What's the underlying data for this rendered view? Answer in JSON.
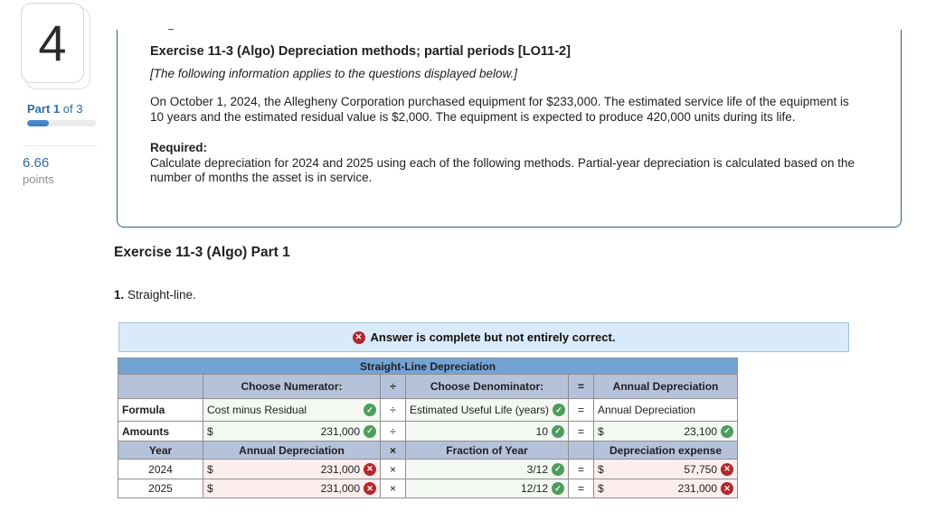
{
  "sidebar": {
    "question_number": "4",
    "part_bold": "Part 1",
    "part_rest": " of 3",
    "progress_percent": 32,
    "points_value": "6.66",
    "points_label": "points"
  },
  "info_box": {
    "title": "Exercise 11-3 (Algo) Depreciation methods; partial periods [LO11-2]",
    "subtitle": "[The following information applies to the questions displayed below.]",
    "body": "On October 1, 2024, the Allegheny Corporation purchased equipment for $233,000. The estimated service life of the equipment is 10 years and the estimated residual value is $2,000. The equipment is expected to produce 420,000 units during its life.",
    "required_label": "Required:",
    "required_body": "Calculate depreciation for 2024 and 2025 using each of the following methods. Partial-year depreciation is calculated based on the number of months the asset is in service."
  },
  "section": {
    "heading": "Exercise 11-3 (Algo) Part 1",
    "item_number": "1.",
    "item_text": " Straight-line."
  },
  "banner": {
    "text": "Answer is complete but not entirely correct."
  },
  "icons": {
    "check": "✓",
    "cross": "✕"
  },
  "table": {
    "title": "Straight-Line Depreciation",
    "currency": "$",
    "top_header": {
      "numerator": "Choose Numerator:",
      "divide_op": "÷",
      "denominator": "Choose Denominator:",
      "equals_op": "=",
      "annual": "Annual Depreciation"
    },
    "formula_row": {
      "label": "Formula",
      "numerator": "Cost minus Residual",
      "numerator_status": "correct",
      "op": "÷",
      "denominator": "Estimated Useful Life (years)",
      "denominator_status": "correct",
      "eq": "=",
      "result": "Annual Depreciation"
    },
    "amounts_row": {
      "label": "Amounts",
      "numerator": "231,000",
      "numerator_status": "correct",
      "op": "÷",
      "denominator": "10",
      "denominator_status": "correct",
      "eq": "=",
      "result": "23,100",
      "result_status": "correct"
    },
    "year_header": {
      "year": "Year",
      "annual": "Annual Depreciation",
      "mul_op": "×",
      "fraction": "Fraction of Year",
      "equals": "",
      "expense": "Depreciation expense"
    },
    "year_rows": [
      {
        "year": "2024",
        "annual": "231,000",
        "annual_status": "wrong",
        "op": "×",
        "fraction": "3/12",
        "fraction_status": "correct",
        "eq": "=",
        "expense": "57,750",
        "expense_status": "wrong"
      },
      {
        "year": "2025",
        "annual": "231,000",
        "annual_status": "wrong",
        "op": "×",
        "fraction": "12/12",
        "fraction_status": "correct",
        "eq": "=",
        "expense": "231,000",
        "expense_status": "wrong"
      }
    ]
  },
  "colors": {
    "table-title-bg": "#74a3d6",
    "table-header-bg": "#b6c2da",
    "cell-correct-bg": "#f3f8f2",
    "cell-wrong-bg": "#fdeeee",
    "check-green": "#4e9d5f",
    "cross-red": "#b3282d",
    "banner-bg": "#d9eaf8",
    "banner-border": "#9fc2e0",
    "accent-blue": "#2d6ca2",
    "box-border": "#2d5f8f",
    "progress-fill": "#3a7dbf"
  }
}
